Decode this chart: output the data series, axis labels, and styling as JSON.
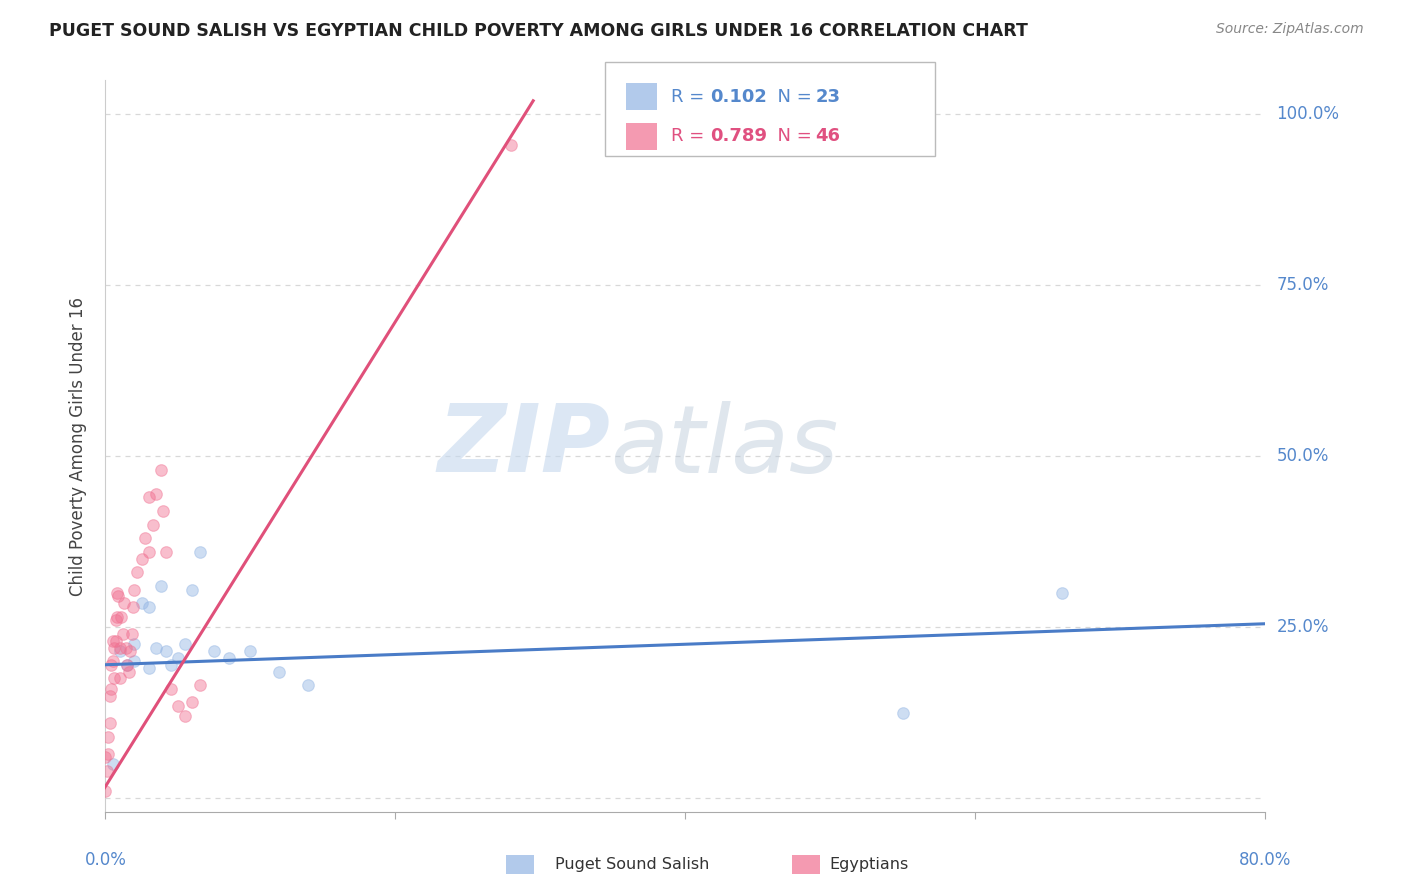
{
  "title": "PUGET SOUND SALISH VS EGYPTIAN CHILD POVERTY AMONG GIRLS UNDER 16 CORRELATION CHART",
  "source": "Source: ZipAtlas.com",
  "ylabel": "Child Poverty Among Girls Under 16",
  "watermark_zip": "ZIP",
  "watermark_atlas": "atlas",
  "legend_r_blue": "0.102",
  "legend_n_blue": "23",
  "legend_r_pink": "0.789",
  "legend_n_pink": "46",
  "blue_scatter_color": "#92b4e3",
  "pink_scatter_color": "#f07090",
  "blue_line_color": "#4a7cc7",
  "pink_line_color": "#e0507a",
  "grid_color": "#d8d8d8",
  "background_color": "#ffffff",
  "xlim": [
    0.0,
    0.8
  ],
  "ylim": [
    -0.02,
    1.05
  ],
  "yticks": [
    0.0,
    0.25,
    0.5,
    0.75,
    1.0
  ],
  "ytick_labels": [
    "",
    "25.0%",
    "50.0%",
    "75.0%",
    "100.0%"
  ],
  "xtick_positions": [
    0.0,
    0.2,
    0.4,
    0.6,
    0.8
  ],
  "blue_points_x": [
    0.005,
    0.01,
    0.015,
    0.02,
    0.02,
    0.025,
    0.03,
    0.03,
    0.035,
    0.038,
    0.042,
    0.045,
    0.05,
    0.055,
    0.06,
    0.065,
    0.075,
    0.085,
    0.1,
    0.12,
    0.14,
    0.55,
    0.66
  ],
  "blue_points_y": [
    0.05,
    0.215,
    0.195,
    0.225,
    0.2,
    0.285,
    0.19,
    0.28,
    0.22,
    0.31,
    0.215,
    0.195,
    0.205,
    0.225,
    0.305,
    0.36,
    0.215,
    0.205,
    0.215,
    0.185,
    0.165,
    0.125,
    0.3
  ],
  "pink_points_x": [
    0.0,
    0.0,
    0.001,
    0.002,
    0.002,
    0.003,
    0.003,
    0.004,
    0.004,
    0.005,
    0.005,
    0.006,
    0.006,
    0.007,
    0.007,
    0.008,
    0.008,
    0.009,
    0.01,
    0.01,
    0.011,
    0.012,
    0.013,
    0.014,
    0.015,
    0.016,
    0.017,
    0.018,
    0.019,
    0.02,
    0.022,
    0.025,
    0.027,
    0.03,
    0.03,
    0.033,
    0.035,
    0.038,
    0.04,
    0.042,
    0.045,
    0.05,
    0.055,
    0.06,
    0.065,
    0.28
  ],
  "pink_points_y": [
    0.01,
    0.06,
    0.04,
    0.065,
    0.09,
    0.11,
    0.15,
    0.16,
    0.195,
    0.2,
    0.23,
    0.175,
    0.22,
    0.23,
    0.26,
    0.265,
    0.3,
    0.295,
    0.175,
    0.22,
    0.265,
    0.24,
    0.285,
    0.22,
    0.195,
    0.185,
    0.215,
    0.24,
    0.28,
    0.305,
    0.33,
    0.35,
    0.38,
    0.36,
    0.44,
    0.4,
    0.445,
    0.48,
    0.42,
    0.36,
    0.16,
    0.135,
    0.12,
    0.14,
    0.165,
    0.955
  ],
  "blue_trend_x": [
    0.0,
    0.8
  ],
  "blue_trend_y": [
    0.195,
    0.255
  ],
  "pink_trend_x": [
    -0.005,
    0.295
  ],
  "pink_trend_y": [
    0.0,
    1.02
  ],
  "marker_size": 70,
  "marker_alpha": 0.45,
  "marker_linewidth": 0.8
}
